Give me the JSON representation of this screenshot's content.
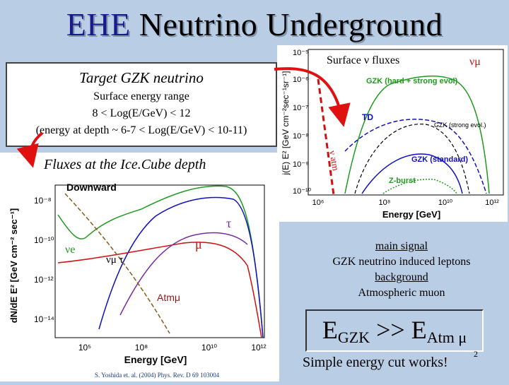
{
  "title_part1": "EHE",
  "title_part2": "Neutrino Underground",
  "target": {
    "title": "Target GZK neutrino",
    "line1": "Surface energy range",
    "line2": "8 < Log(E/GeV) < 12",
    "line3": "(energy at depth ~ 6-7 < Log(E/GeV) < 10-11)"
  },
  "top_chart": {
    "title": "Surface ν fluxes",
    "flavor": "νμ",
    "ylabel": "j(E) E² [GeV cm⁻²sec⁻¹sr⁻¹]",
    "xlabel": "Energy [GeV]",
    "yticks": [
      "10⁻⁵",
      "10⁻⁶",
      "10⁻⁷",
      "10⁻⁸",
      "10⁻⁹",
      "10⁻¹⁰"
    ],
    "xticks": [
      "10⁶",
      "10⁸",
      "10¹⁰",
      "10¹²"
    ],
    "curves": [
      {
        "name": "GZK (hard + strong evol)",
        "color": "#1f9a1f"
      },
      {
        "name": "TD",
        "color": "#1010c0"
      },
      {
        "name": "GZK (strong evol.)",
        "color": "#000000"
      },
      {
        "name": "GZK (standard)",
        "color": "#1010c0"
      },
      {
        "name": "Z-burst",
        "color": "#1f9a1f"
      },
      {
        "name": "ν atm",
        "color": "#d01010"
      }
    ]
  },
  "bottom_chart": {
    "title": "Fluxes at the Ice.Cube depth",
    "label_downward": "Downward",
    "ylabel": "dN/dE E² [GeV cm⁻² sec⁻¹]",
    "xlabel": "Energy [GeV]",
    "yticks": [
      "10⁻⁸",
      "10⁻¹⁰",
      "10⁻¹²",
      "10⁻¹⁴"
    ],
    "xticks": [
      "10⁵",
      "10⁸",
      "10¹⁰",
      "10¹²"
    ],
    "labels": {
      "nu_e": "νe",
      "nu_mu_tau": "νμ τ",
      "mu": "μ",
      "tau": "τ",
      "atm_mu": "Atmμ"
    },
    "citation": "S. Yoshida et. al. (2004) Phys. Rev. D 69 103004"
  },
  "signal": {
    "main_signal": "main signal",
    "gzk_leptons": "GZK neutrino induced leptons",
    "background": "background",
    "atm_muon": "Atmospheric muon"
  },
  "formula": {
    "e1": "E",
    "sub1": "GZK",
    "op": " >> ",
    "e2": "E",
    "sub2": "Atm μ"
  },
  "conclusion": "Simple energy cut works!",
  "page_number": "2"
}
